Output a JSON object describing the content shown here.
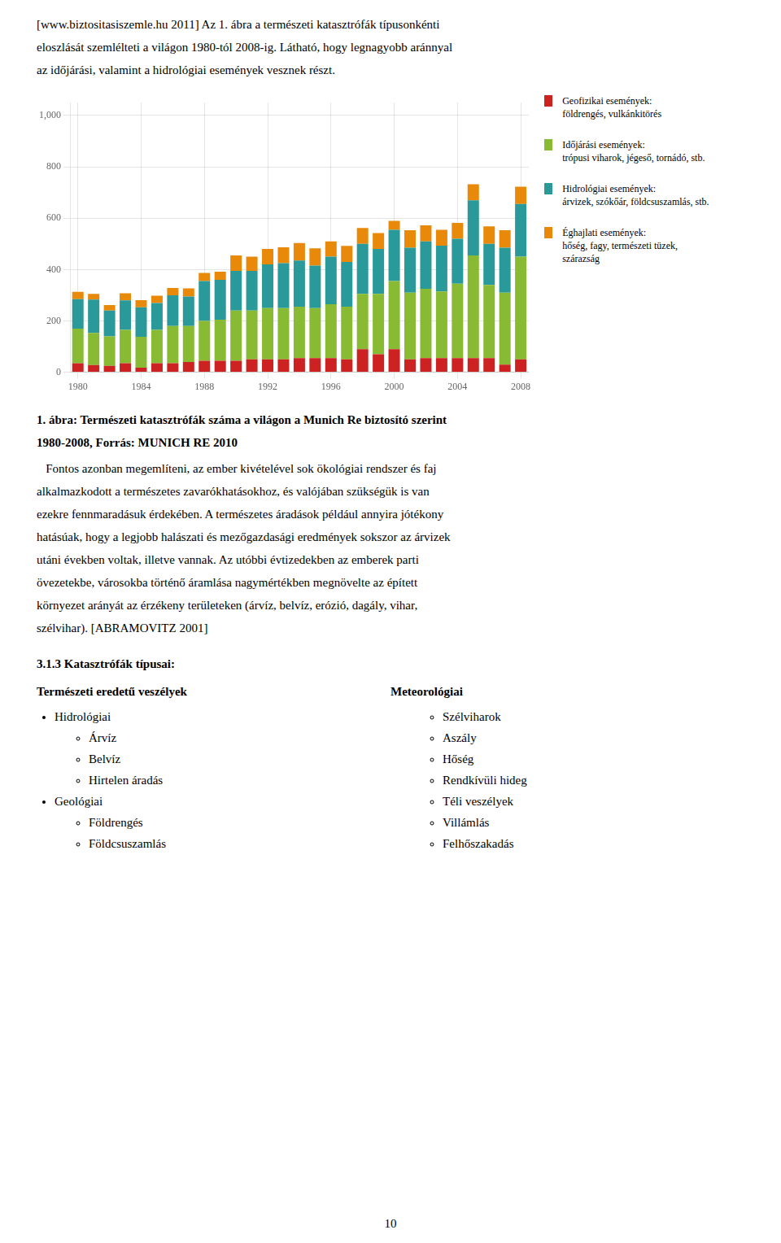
{
  "header_lines": [
    "[www.biztositasiszemle.hu 2011] Az 1. ábra a természeti katasztrófák típusonkénti",
    "eloszlását szemlélteti a világon 1980-tól 2008-ig. Látható, hogy legnagyobb aránnyal",
    "az időjárási, valamint a hidrológiai események vesznek részt."
  ],
  "chart_data": {
    "type": "bar",
    "stacked": true,
    "grid": true,
    "legend": "right",
    "categories": [
      "1980",
      null,
      null,
      null,
      "1984",
      null,
      null,
      null,
      "1988",
      null,
      null,
      null,
      "1992",
      null,
      null,
      null,
      "1996",
      null,
      null,
      null,
      "2000",
      null,
      null,
      null,
      "2004",
      null,
      null,
      null,
      "2008"
    ],
    "series": [
      {
        "name": "Geofizikai események:",
        "sub": [
          "földrengés, vulkánkitörés"
        ],
        "color": "#cc2222",
        "values": [
          35,
          28,
          25,
          35,
          18,
          35,
          35,
          40,
          45,
          45,
          45,
          50,
          50,
          50,
          55,
          55,
          55,
          50,
          90,
          70,
          90,
          50,
          55,
          55,
          55,
          55,
          55,
          30,
          50
        ]
      },
      {
        "name": "Időjárási események:",
        "sub": [
          "trópusi viharok, jégeső, tornádó, stb."
        ],
        "color": "#88bb33",
        "values": [
          135,
          125,
          115,
          130,
          120,
          130,
          145,
          140,
          155,
          160,
          195,
          190,
          200,
          200,
          200,
          195,
          210,
          205,
          215,
          235,
          265,
          260,
          270,
          260,
          290,
          400,
          285,
          280,
          400
        ]
      },
      {
        "name": "Hidrológiai események:",
        "sub": [
          "árvizek, szókőár, földcsuszamlás, stb."
        ],
        "color": "#2a9999",
        "values": [
          115,
          130,
          100,
          115,
          115,
          105,
          120,
          115,
          155,
          155,
          155,
          155,
          170,
          175,
          180,
          165,
          185,
          175,
          195,
          175,
          200,
          175,
          185,
          178,
          175,
          215,
          160,
          175,
          205
        ]
      },
      {
        "name": "Éghajlati események:",
        "sub": [
          "hőség, fagy, természeti tüzek,",
          "szárazság"
        ],
        "color": "#e8890a",
        "values": [
          28,
          22,
          22,
          28,
          28,
          28,
          28,
          32,
          32,
          32,
          60,
          55,
          60,
          62,
          68,
          68,
          60,
          62,
          62,
          62,
          35,
          68,
          62,
          62,
          62,
          62,
          68,
          68,
          68
        ]
      }
    ],
    "ylim": [
      0,
      1050
    ],
    "yticks": [
      0,
      200,
      400,
      600,
      800,
      {
        "value": 1000,
        "label": "1,000"
      }
    ]
  },
  "caption_lines_bold": [
    "1. ábra: Természeti katasztrófák száma a világon a Munich Re biztosító szerint",
    "1980-2008, Forrás: MUNICH RE 2010"
  ],
  "caption_lines_normal": [
    "   Fontos azonban megemlíteni, az ember kivételével sok ökológiai rendszer és faj",
    "alkalmazkodott a természetes zavarókhatásokhoz, és valójában szükségük is van",
    "ezekre fennmaradásuk érdekében. A természetes áradások például annyira jótékony",
    "hatásúak, hogy a legjobb halászati és mezőgazdasági eredmények sokszor az árvizek",
    "utáni években voltak, illetve vannak. Az utóbbi évtizedekben az emberek parti",
    "övezetekbe, városokba történő áramlása nagymértékben megnövelte az épített",
    "környezet arányát az érzékeny területeken (árvíz, belvíz, erózió, dagály, vihar,",
    "szélvihar). [ABRAMOVITZ 2001]"
  ],
  "section_title": "3.1.3 Katasztrófák típusai:",
  "columns": [
    {
      "title": "Természeti eredetű veszélyek",
      "items": [
        {
          "label": "Hidrológiai",
          "level": 1
        },
        {
          "label": "Árvíz",
          "level": 2
        },
        {
          "label": "Belvíz",
          "level": 2
        },
        {
          "label": "Hirtelen áradás",
          "level": 2
        },
        {
          "label": "Geológiai",
          "level": 1
        },
        {
          "label": "Földrengés",
          "level": 2
        },
        {
          "label": "Földcsuszamlás",
          "level": 2
        }
      ]
    },
    {
      "title": "Meteorológiai",
      "items": [
        {
          "label": "Szélviharok",
          "level": 2
        },
        {
          "label": "Aszály",
          "level": 2
        },
        {
          "label": "Hőség",
          "level": 2
        },
        {
          "label": "Rendkívüli hideg",
          "level": 2
        },
        {
          "label": "Téli veszélyek",
          "level": 2
        },
        {
          "label": "Villámlás",
          "level": 2
        },
        {
          "label": "Felhőszakadás",
          "level": 2
        }
      ]
    }
  ],
  "page_number": "10"
}
